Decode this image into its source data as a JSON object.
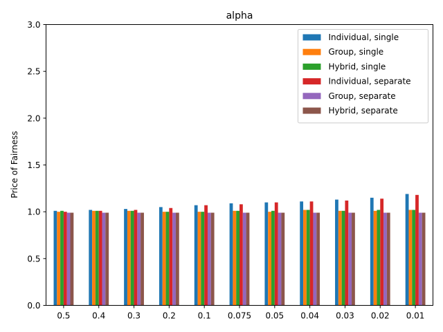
{
  "chart_data": {
    "type": "bar",
    "title": "alpha",
    "xlabel": "",
    "ylabel": "Price of Fairness",
    "ylim": [
      0,
      3.0
    ],
    "yticks": [
      "0.0",
      "0.5",
      "1.0",
      "1.5",
      "2.0",
      "2.5",
      "3.0"
    ],
    "grid": false,
    "legend_position": "top-right",
    "categories": [
      "0.5",
      "0.4",
      "0.3",
      "0.2",
      "0.1",
      "0.075",
      "0.05",
      "0.04",
      "0.03",
      "0.02",
      "0.01"
    ],
    "series": [
      {
        "name": "Individual, single",
        "color": "#1f77b4",
        "values": [
          1.01,
          1.02,
          1.03,
          1.05,
          1.07,
          1.09,
          1.1,
          1.11,
          1.13,
          1.15,
          1.19
        ]
      },
      {
        "name": "Group, single",
        "color": "#ff7f0e",
        "values": [
          1.0,
          1.01,
          1.01,
          1.0,
          1.0,
          1.01,
          1.0,
          1.02,
          1.01,
          1.01,
          1.02
        ]
      },
      {
        "name": "Hybrid, single",
        "color": "#2ca02c",
        "values": [
          1.01,
          1.01,
          1.01,
          1.0,
          1.0,
          1.01,
          1.01,
          1.02,
          1.01,
          1.02,
          1.02
        ]
      },
      {
        "name": "Individual, separate",
        "color": "#d62728",
        "values": [
          1.0,
          1.01,
          1.02,
          1.04,
          1.07,
          1.08,
          1.1,
          1.11,
          1.12,
          1.14,
          1.18
        ]
      },
      {
        "name": "Group, separate",
        "color": "#9467bd",
        "values": [
          0.99,
          0.99,
          0.99,
          0.99,
          0.99,
          0.99,
          0.99,
          0.99,
          0.99,
          0.99,
          0.99
        ]
      },
      {
        "name": "Hybrid, separate",
        "color": "#8c564b",
        "values": [
          0.99,
          0.99,
          0.99,
          0.99,
          0.99,
          0.99,
          0.99,
          0.99,
          0.99,
          0.99,
          0.99
        ]
      }
    ]
  }
}
